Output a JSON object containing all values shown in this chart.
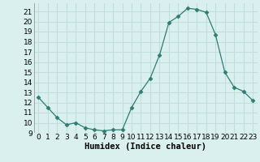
{
  "x": [
    0,
    1,
    2,
    3,
    4,
    5,
    6,
    7,
    8,
    9,
    10,
    11,
    12,
    13,
    14,
    15,
    16,
    17,
    18,
    19,
    20,
    21,
    22,
    23
  ],
  "y": [
    12.5,
    11.5,
    10.5,
    9.8,
    10.0,
    9.5,
    9.3,
    9.2,
    9.3,
    9.3,
    11.5,
    13.1,
    14.4,
    16.7,
    19.9,
    20.5,
    21.3,
    21.2,
    20.9,
    18.7,
    15.0,
    13.5,
    13.1,
    12.2
  ],
  "line_color": "#2e7d72",
  "marker": "D",
  "marker_size": 2.5,
  "bg_color": "#daf0ee",
  "grid_color": "#c0dedd",
  "title": "",
  "xlabel": "Humidex (Indice chaleur)",
  "ylabel": "",
  "xlim": [
    -0.5,
    23.5
  ],
  "ylim": [
    9,
    21.8
  ],
  "yticks": [
    9,
    10,
    11,
    12,
    13,
    14,
    15,
    16,
    17,
    18,
    19,
    20,
    21
  ],
  "xticks": [
    0,
    1,
    2,
    3,
    4,
    5,
    6,
    7,
    8,
    9,
    10,
    11,
    12,
    13,
    14,
    15,
    16,
    17,
    18,
    19,
    20,
    21,
    22,
    23
  ],
  "xlabel_fontsize": 7.5,
  "tick_fontsize": 6.5
}
